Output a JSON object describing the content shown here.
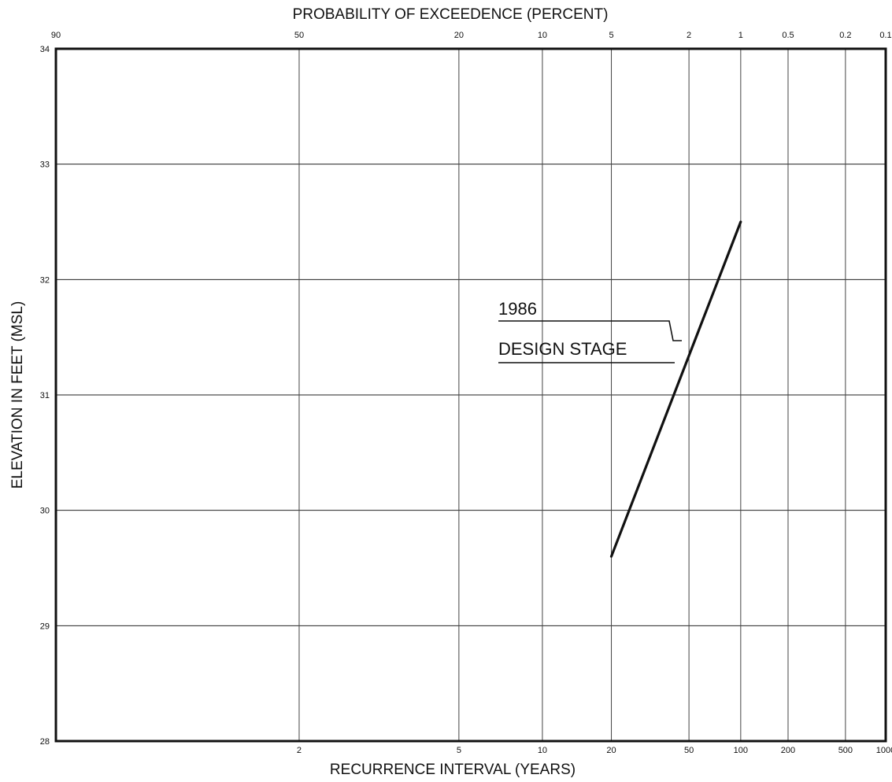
{
  "chart_data": {
    "type": "line",
    "title_top": "PROBABILITY OF EXCEEDENCE (PERCENT)",
    "xlabel": "RECURRENCE INTERVAL (YEARS)",
    "ylabel": "ELEVATION IN FEET (MSL)",
    "x_scale": "probability",
    "ylim": [
      28,
      34
    ],
    "y_ticks": [
      "28",
      "29",
      "30",
      "31",
      "32",
      "33",
      "34"
    ],
    "top_ticks": [
      {
        "p": 90,
        "label": "90"
      },
      {
        "p": 50,
        "label": "50"
      },
      {
        "p": 20,
        "label": "20"
      },
      {
        "p": 10,
        "label": "10"
      },
      {
        "p": 5,
        "label": "5"
      },
      {
        "p": 2,
        "label": "2"
      },
      {
        "p": 1,
        "label": "1"
      },
      {
        "p": 0.5,
        "label": "0.5"
      },
      {
        "p": 0.2,
        "label": "0.2"
      },
      {
        "p": 0.1,
        "label": "0.1"
      }
    ],
    "bottom_ticks": [
      {
        "years": 2,
        "label": "2"
      },
      {
        "years": 5,
        "label": "5"
      },
      {
        "years": 10,
        "label": "10"
      },
      {
        "years": 20,
        "label": "20"
      },
      {
        "years": 50,
        "label": "50"
      },
      {
        "years": 100,
        "label": "100"
      },
      {
        "years": 200,
        "label": "200"
      },
      {
        "years": 500,
        "label": "500"
      },
      {
        "years": 1000,
        "label": "1000"
      }
    ],
    "grid": true,
    "series": [
      {
        "points": [
          {
            "years": 20,
            "elevation": 29.6
          },
          {
            "years": 100,
            "elevation": 32.5
          }
        ]
      }
    ],
    "annotation": {
      "line1": "1986",
      "line2": "DESIGN STAGE"
    }
  }
}
